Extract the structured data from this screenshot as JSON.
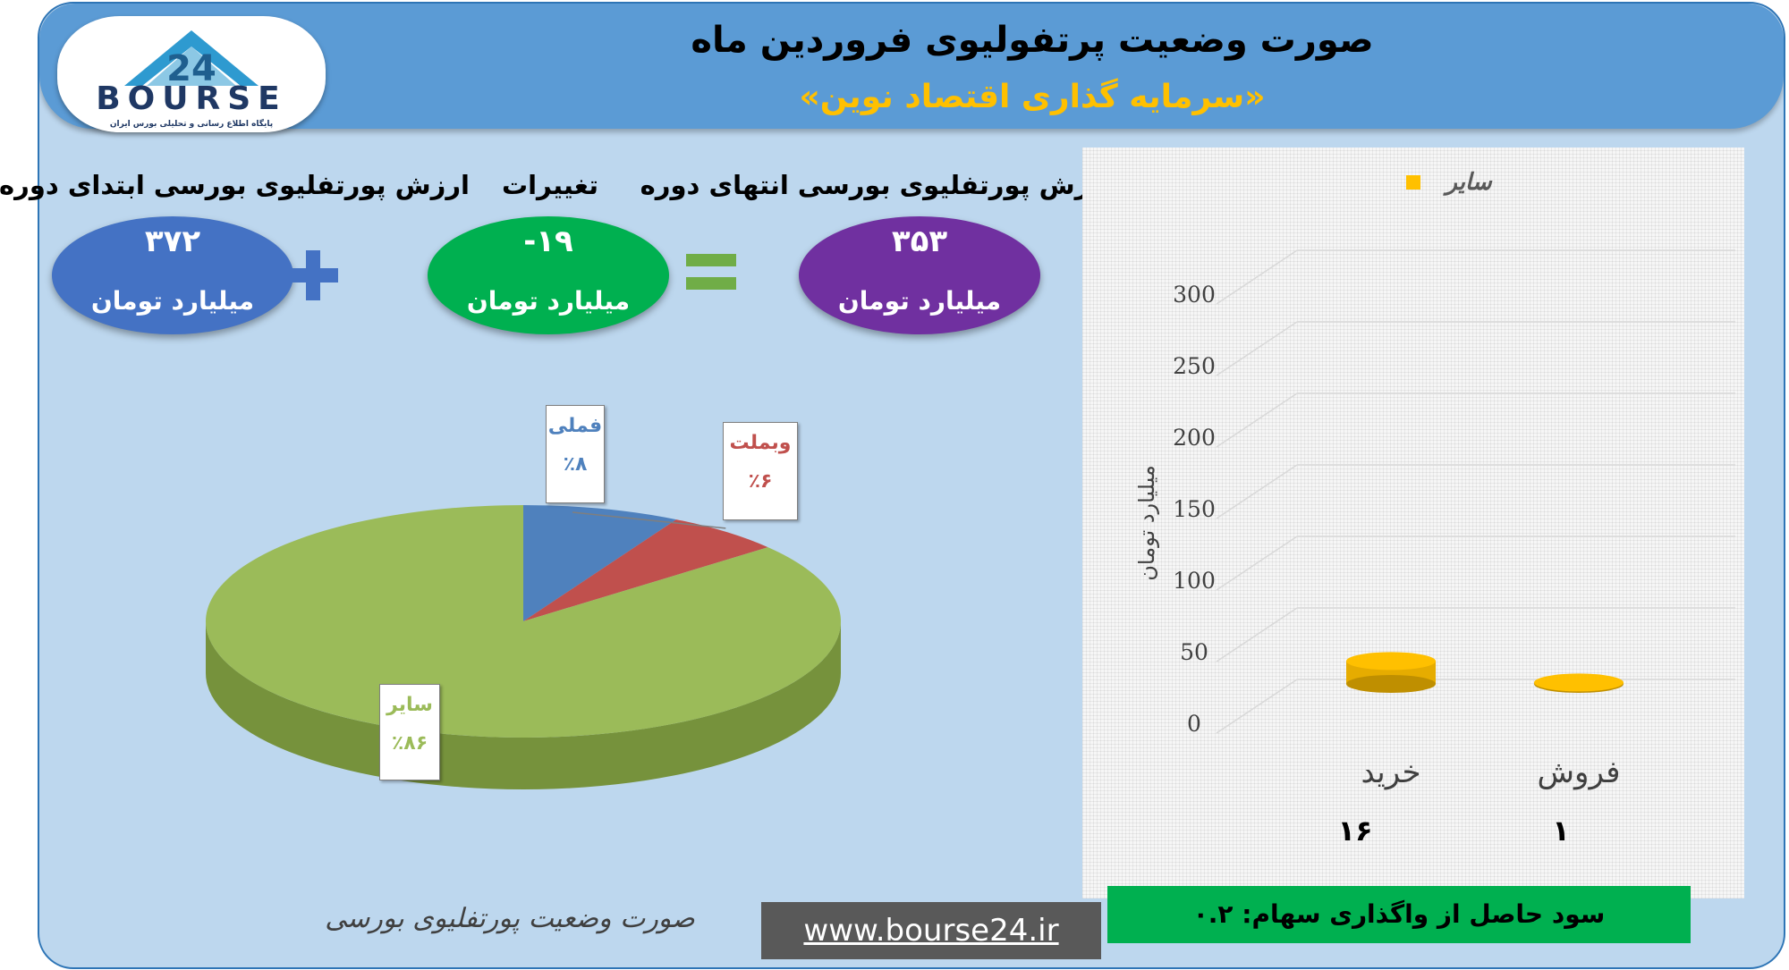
{
  "header": {
    "title": "صورت وضعیت پرتفولیوی فروردین ماه",
    "subtitle": "«سرمایه گذاری اقتصاد نوین»"
  },
  "logo": {
    "mark": "24",
    "text": "BOURSE",
    "tagline": "پایگاه اطلاع رسانی و تحلیلی بورس ایران"
  },
  "summary": {
    "start_label": "ارزش پورتفلیوی بورسی ابتدای دوره",
    "start_value": "۳۷۲",
    "change_label": "تغییرات",
    "change_value": "-۱۹",
    "end_label": "ارزش پورتفلیوی بورسی انتهای دوره",
    "end_value": "۳۵۳",
    "unit": "میلیارد تومان",
    "colors": {
      "start": "#4472c4",
      "change": "#00b050",
      "end": "#7030a0",
      "operator": "#4472c4",
      "equals": "#70ad47"
    }
  },
  "pie": {
    "caption": "صورت وضعیت پورتفلیوی بورسی",
    "labels": {
      "fameli": {
        "name": "فملی",
        "value": "٪۸"
      },
      "vebemellat": {
        "name": "وبملت",
        "value": "٪۶"
      },
      "other": {
        "name": "سایر",
        "value": "٪۸۶"
      }
    }
  },
  "bar": {
    "legend": "سایر",
    "ylabel": "میلیارد تومان",
    "yticks": [
      "300",
      "250",
      "200",
      "150",
      "100",
      "50",
      "0"
    ],
    "categories": [
      "خرید",
      "فروش"
    ],
    "value_labels": [
      "۱۶",
      "۱"
    ]
  },
  "profit": "سود حاصل از واگذاری سهام: ۰.۲",
  "website": "www.bourse24.ir",
  "chart_data": [
    {
      "type": "pie",
      "title": "",
      "categories": [
        "فملی",
        "وبملت",
        "سایر"
      ],
      "values": [
        8,
        6,
        86
      ],
      "colors": [
        "#4f81bd",
        "#c0504d",
        "#9bbb59"
      ]
    },
    {
      "type": "bar",
      "title": "",
      "categories": [
        "خرید",
        "فروش"
      ],
      "series": [
        {
          "name": "سایر",
          "values": [
            16,
            1
          ]
        }
      ],
      "ylabel": "میلیارد تومان",
      "ylim": [
        0,
        300
      ],
      "legend": "top",
      "grid": true,
      "color": "#ffc000"
    }
  ]
}
